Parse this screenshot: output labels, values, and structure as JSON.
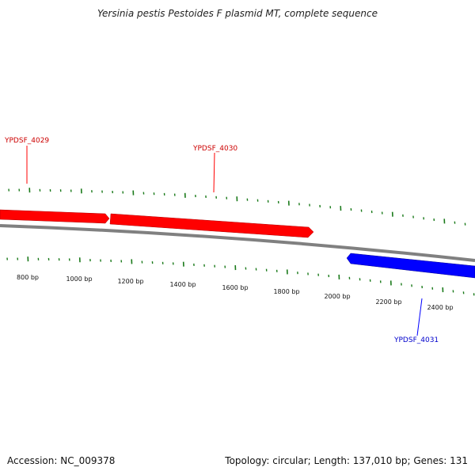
{
  "title": "Yersinia pestis Pestoides F plasmid MT, complete sequence",
  "footer": {
    "accession": "Accession: NC_009378",
    "summary": "Topology: circular; Length: 137,010 bp; Genes: 131"
  },
  "colors": {
    "forward_gene": "#ff0000",
    "reverse_gene": "#0000ff",
    "backbone": "#808080",
    "ticks": "#1a7a1a",
    "tick_label": "#111111"
  },
  "genes": [
    {
      "id": "YPDSF_4029",
      "strand": "forward",
      "color": "#ff0000"
    },
    {
      "id": "YPDSF_4030",
      "strand": "forward",
      "color": "#ff0000"
    },
    {
      "id": "YPDSF_4031",
      "strand": "reverse",
      "color": "#0000ff"
    }
  ],
  "tick_labels": [
    "800 bp",
    "1000 bp",
    "1200 bp",
    "1400 bp",
    "1600 bp",
    "1800 bp",
    "2000 bp",
    "2200 bp",
    "2400 bp"
  ]
}
